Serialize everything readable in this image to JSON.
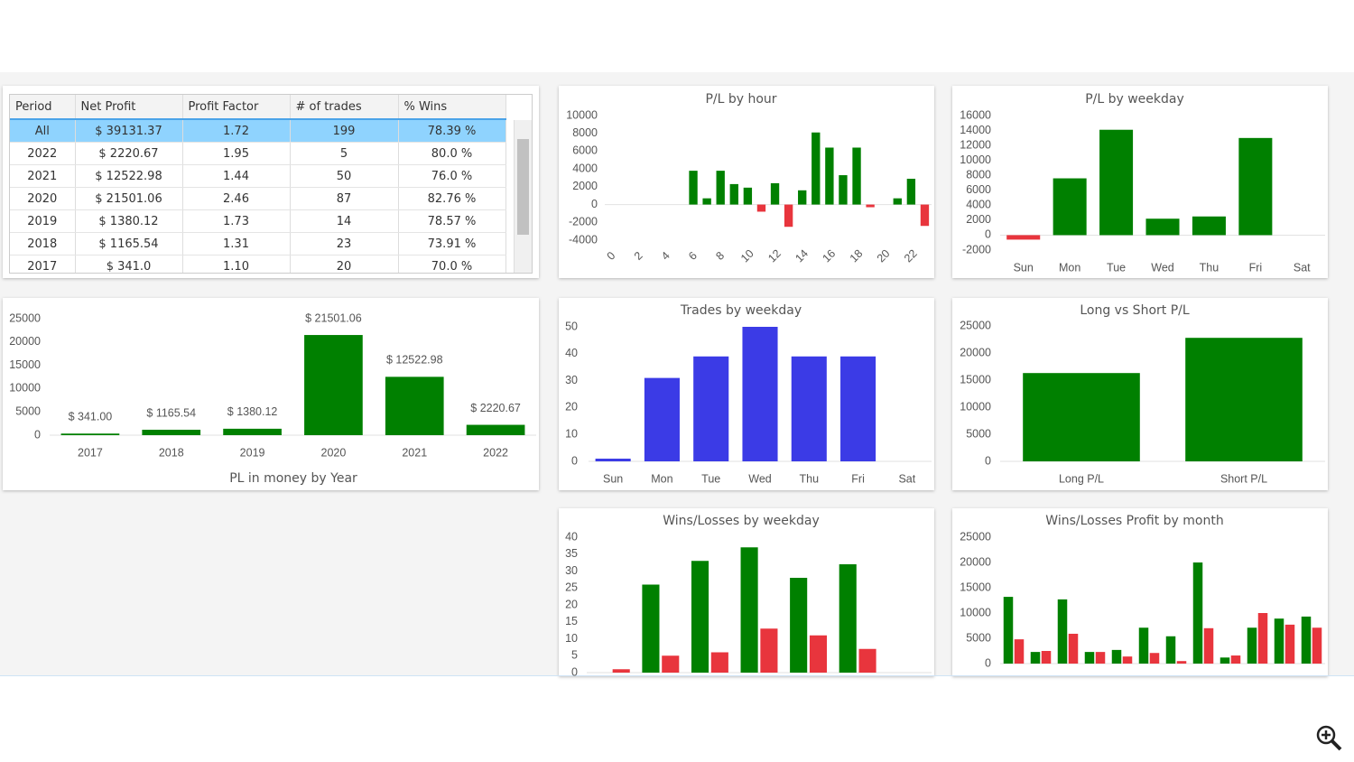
{
  "table": {
    "columns": [
      "Period",
      "Net Profit",
      "Profit Factor",
      "# of trades",
      "% Wins"
    ],
    "rows": [
      [
        "All",
        "$ 39131.37",
        "1.72",
        "199",
        "78.39 %"
      ],
      [
        "2022",
        "$ 2220.67",
        "1.95",
        "5",
        "80.0 %"
      ],
      [
        "2021",
        "$ 12522.98",
        "1.44",
        "50",
        "76.0 %"
      ],
      [
        "2020",
        "$ 21501.06",
        "2.46",
        "87",
        "82.76 %"
      ],
      [
        "2019",
        "$ 1380.12",
        "1.73",
        "14",
        "78.57 %"
      ],
      [
        "2018",
        "$ 1165.54",
        "1.31",
        "23",
        "73.91 %"
      ],
      [
        "2017",
        "$ 341.0",
        "1.10",
        "20",
        "70.0 %"
      ]
    ],
    "selected_row": 0
  },
  "chart_data": [
    {
      "type": "bar",
      "title": "P/L by hour",
      "categories": [
        "0",
        null,
        "2",
        null,
        "4",
        null,
        "6",
        null,
        "8",
        null,
        "10",
        null,
        "12",
        null,
        "14",
        null,
        "16",
        null,
        "18",
        null,
        "20",
        null,
        "22",
        null
      ],
      "values": [
        0,
        0,
        0,
        0,
        0,
        0,
        3800,
        700,
        3800,
        2300,
        1900,
        -800,
        2400,
        -2500,
        1600,
        8100,
        6400,
        3300,
        6400,
        -300,
        0,
        700,
        2900,
        -2400
      ],
      "color": "#008000",
      "negative_color": "#e8353d",
      "ylim": [
        -4000,
        10000
      ],
      "yticks": [
        -4000,
        -2000,
        0,
        2000,
        4000,
        6000,
        8000,
        10000
      ],
      "grid": false
    },
    {
      "type": "bar",
      "title": "P/L by weekday",
      "categories": [
        "Sun",
        "Mon",
        "Tue",
        "Wed",
        "Thu",
        "Fri",
        "Sat"
      ],
      "values": [
        -600,
        7600,
        14100,
        2200,
        2500,
        13000,
        0
      ],
      "color": "#008000",
      "negative_color": "#e8353d",
      "ylim": [
        -2000,
        16000
      ],
      "yticks": [
        -2000,
        0,
        2000,
        4000,
        6000,
        8000,
        10000,
        12000,
        14000,
        16000
      ],
      "grid": false
    },
    {
      "type": "bar",
      "title": "PL in money by Year",
      "categories": [
        "2017",
        "2018",
        "2019",
        "2020",
        "2021",
        "2022"
      ],
      "values": [
        341.0,
        1165.54,
        1380.12,
        21501.06,
        12522.98,
        2220.67
      ],
      "value_labels": [
        "$ 341.00",
        "$ 1165.54",
        "$ 1380.12",
        "$ 21501.06",
        "$ 12522.98",
        "$ 2220.67"
      ],
      "color": "#008000",
      "negative_color": "#e8353d",
      "ylim": [
        0,
        25000
      ],
      "yticks": [
        0,
        5000,
        10000,
        15000,
        20000,
        25000
      ],
      "grid": false
    },
    {
      "type": "bar",
      "title": "Trades by weekday",
      "categories": [
        "Sun",
        "Mon",
        "Tue",
        "Wed",
        "Thu",
        "Fri",
        "Sat"
      ],
      "values": [
        1,
        31,
        39,
        50,
        39,
        39,
        0
      ],
      "color": "#3b3be6",
      "negative_color": "#e8353d",
      "ylim": [
        0,
        50
      ],
      "yticks": [
        0,
        10,
        20,
        30,
        40,
        50
      ],
      "grid": false
    },
    {
      "type": "bar",
      "title": "Long vs Short P/L",
      "categories": [
        "Long P/L",
        "Short P/L"
      ],
      "values": [
        16300,
        22800
      ],
      "color": "#008000",
      "negative_color": "#e8353d",
      "ylim": [
        0,
        25000
      ],
      "yticks": [
        0,
        5000,
        10000,
        15000,
        20000,
        25000
      ],
      "grid": false
    },
    {
      "type": "bar",
      "title": "Wins/Losses by weekday",
      "categories": [
        null,
        null,
        null,
        null,
        null,
        null,
        null
      ],
      "series": [
        {
          "color": "#008000",
          "values": [
            0,
            26,
            33,
            37,
            28,
            32,
            0
          ]
        },
        {
          "color": "#e8353d",
          "values": [
            1,
            5,
            6,
            13,
            11,
            7,
            0
          ]
        }
      ],
      "ylim": [
        0,
        40
      ],
      "yticks": [
        0,
        5,
        10,
        15,
        20,
        25,
        30,
        35,
        40
      ],
      "grid": false
    },
    {
      "type": "bar",
      "title": "Wins/Losses Profit by month",
      "categories": [
        null,
        null,
        null,
        null,
        null,
        null,
        null,
        null,
        null,
        null,
        null,
        null
      ],
      "series": [
        {
          "color": "#008000",
          "values": [
            13200,
            2300,
            12700,
            2300,
            2700,
            7100,
            5400,
            20000,
            1200,
            7100,
            8900,
            9300
          ]
        },
        {
          "color": "#e8353d",
          "values": [
            4800,
            2500,
            5900,
            2300,
            1400,
            2100,
            500,
            7000,
            1600,
            10000,
            7700,
            7100
          ]
        }
      ],
      "ylim": [
        0,
        25000
      ],
      "yticks": [
        0,
        5000,
        10000,
        15000,
        20000,
        25000
      ],
      "grid": false
    }
  ]
}
